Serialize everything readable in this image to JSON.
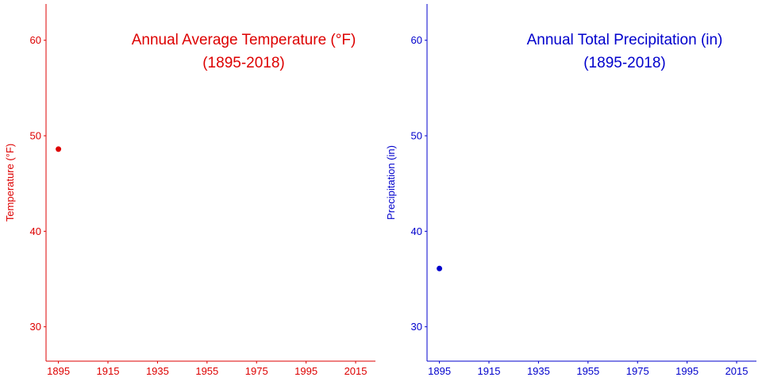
{
  "chart_data": [
    {
      "type": "scatter",
      "title": "Annual Average Temperature (°F)",
      "subtitle": "(1895-2018)",
      "xlabel": "",
      "ylabel": "Temperature (°F)",
      "color": "#dd0000",
      "xlim": [
        1890,
        2023
      ],
      "ylim": [
        26.4,
        63.8
      ],
      "xticks": [
        1895,
        1915,
        1935,
        1955,
        1975,
        1995,
        2015
      ],
      "yticks": [
        30,
        40,
        50,
        60
      ],
      "grid": false,
      "series": [
        {
          "x": [
            1895
          ],
          "y": [
            48.6
          ]
        }
      ]
    },
    {
      "type": "scatter",
      "title": "Annual Total Precipitation (in)",
      "subtitle": "(1895-2018)",
      "xlabel": "",
      "ylabel": "Precipitation (in)",
      "color": "#0000cc",
      "xlim": [
        1890,
        2023
      ],
      "ylim": [
        26.4,
        63.8
      ],
      "xticks": [
        1895,
        1915,
        1935,
        1955,
        1975,
        1995,
        2015
      ],
      "yticks": [
        30,
        40,
        50,
        60
      ],
      "grid": false,
      "series": [
        {
          "x": [
            1895
          ],
          "y": [
            36.1
          ]
        }
      ]
    }
  ]
}
